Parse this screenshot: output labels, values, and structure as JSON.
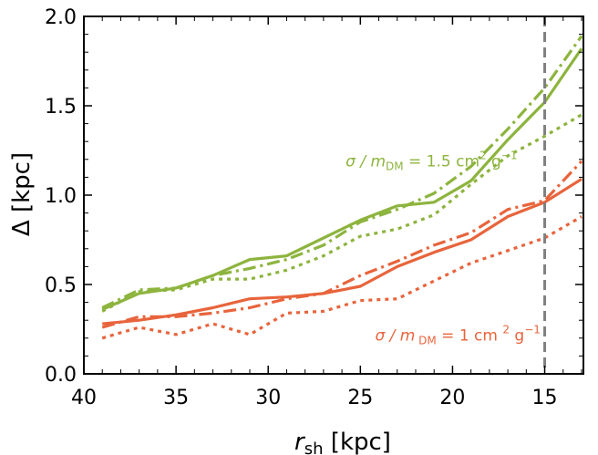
{
  "chart_data": {
    "type": "line",
    "title": "",
    "xlabel_main": "r",
    "xlabel_sub": "sh",
    "xlabel_unit": " [kpc]",
    "ylabel": "Δ [kpc]",
    "xlim": [
      40,
      12.9
    ],
    "ylim": [
      0.0,
      2.0
    ],
    "xticks": [
      40,
      35,
      30,
      25,
      20,
      15
    ],
    "xtick_labels": [
      "40",
      "35",
      "30",
      "25",
      "20",
      "15"
    ],
    "yticks": [
      0.0,
      0.5,
      1.0,
      1.5,
      2.0
    ],
    "ytick_labels": [
      "0.0",
      "0.5",
      "1.0",
      "1.5",
      "2.0"
    ],
    "vline": {
      "x": 15,
      "color": "#808080",
      "style": "dashed"
    },
    "colors": {
      "green": "#8db43e",
      "orange": "#e8643c"
    },
    "series": [
      {
        "name": "green-solid",
        "group": "sigma-1.5",
        "color": "#8db43e",
        "style": "solid",
        "x": [
          39,
          37,
          35,
          33,
          31,
          29,
          27,
          25,
          23,
          21,
          19,
          17,
          15,
          13
        ],
        "y": [
          0.36,
          0.45,
          0.48,
          0.55,
          0.64,
          0.66,
          0.76,
          0.86,
          0.94,
          0.96,
          1.08,
          1.31,
          1.52,
          1.82
        ]
      },
      {
        "name": "green-dashdot",
        "group": "sigma-1.5",
        "color": "#8db43e",
        "style": "dashdot",
        "x": [
          39,
          37,
          35,
          33,
          31,
          29,
          27,
          25,
          23,
          21,
          19,
          17,
          15,
          13
        ],
        "y": [
          0.37,
          0.47,
          0.48,
          0.55,
          0.59,
          0.64,
          0.72,
          0.85,
          0.92,
          1.01,
          1.16,
          1.37,
          1.6,
          1.89
        ]
      },
      {
        "name": "green-dotted",
        "group": "sigma-1.5",
        "color": "#8db43e",
        "style": "dotted",
        "x": [
          39,
          37,
          35,
          33,
          31,
          29,
          27,
          25,
          23,
          21,
          19,
          17,
          15,
          13
        ],
        "y": [
          0.35,
          0.46,
          0.47,
          0.53,
          0.53,
          0.58,
          0.66,
          0.77,
          0.81,
          0.89,
          1.06,
          1.22,
          1.33,
          1.45
        ]
      },
      {
        "name": "orange-solid",
        "group": "sigma-1",
        "color": "#e8643c",
        "style": "solid",
        "x": [
          39,
          37,
          35,
          33,
          31,
          29,
          27,
          25,
          23,
          21,
          19,
          17,
          15,
          13
        ],
        "y": [
          0.28,
          0.3,
          0.33,
          0.37,
          0.42,
          0.43,
          0.45,
          0.49,
          0.6,
          0.68,
          0.75,
          0.88,
          0.96,
          1.09
        ]
      },
      {
        "name": "orange-dashdot",
        "group": "sigma-1",
        "color": "#e8643c",
        "style": "dashdot",
        "x": [
          39,
          37,
          35,
          33,
          31,
          29,
          27,
          25,
          23,
          21,
          19,
          17,
          15,
          13
        ],
        "y": [
          0.26,
          0.32,
          0.32,
          0.34,
          0.37,
          0.42,
          0.45,
          0.55,
          0.63,
          0.72,
          0.79,
          0.92,
          0.97,
          1.19
        ]
      },
      {
        "name": "orange-dotted",
        "group": "sigma-1",
        "color": "#e8643c",
        "style": "dotted",
        "x": [
          39,
          37,
          35,
          33,
          31,
          29,
          27,
          25,
          23,
          21,
          19,
          17,
          15,
          13
        ],
        "y": [
          0.2,
          0.26,
          0.22,
          0.28,
          0.22,
          0.34,
          0.35,
          0.41,
          0.42,
          0.52,
          0.62,
          0.69,
          0.76,
          0.88
        ]
      }
    ],
    "annotations": [
      {
        "name": "annotation-sigma-15",
        "color": "#8db43e",
        "x": 25.8,
        "y": 1.16,
        "parts": [
          "σ / ",
          "m",
          "DM",
          " = 1.5 cm",
          "2",
          " g",
          "−1"
        ]
      },
      {
        "name": "annotation-sigma-1",
        "color": "#e8643c",
        "x": 24.2,
        "y": 0.185,
        "parts": [
          "σ / ",
          "m",
          " DM",
          " = 1 cm ",
          "2",
          " g",
          "−1"
        ]
      }
    ]
  }
}
